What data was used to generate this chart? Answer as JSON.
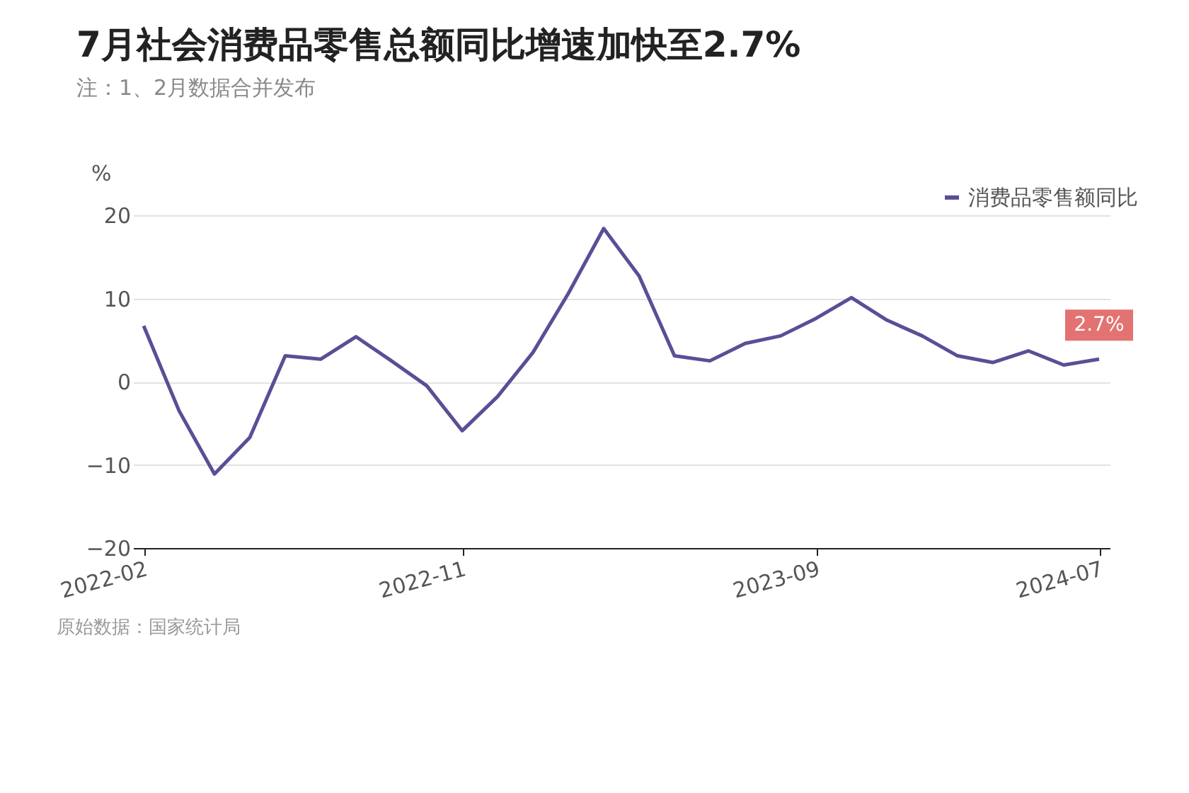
{
  "chart_data": {
    "type": "line",
    "title": "7月社会消费品零售总额同比增速加快至2.7%",
    "subtitle": "注：1、2月数据合并发布",
    "ylabel": "%",
    "categories": [
      "2022-02",
      null,
      null,
      null,
      null,
      null,
      null,
      null,
      null,
      "2022-11",
      null,
      null,
      null,
      null,
      null,
      null,
      null,
      null,
      null,
      "2023-09",
      null,
      null,
      null,
      null,
      null,
      null,
      null,
      "2024-07"
    ],
    "series": [
      {
        "name": "消费品零售额同比",
        "color": "#5b4e96",
        "values": [
          6.7,
          -3.5,
          -11.1,
          -6.7,
          3.1,
          2.7,
          5.4,
          2.5,
          -0.5,
          -5.9,
          -1.8,
          3.5,
          10.6,
          18.4,
          12.7,
          3.1,
          2.5,
          4.6,
          5.5,
          7.6,
          10.1,
          7.4,
          5.5,
          3.1,
          2.3,
          3.7,
          2.0,
          2.7
        ]
      }
    ],
    "ylim": [
      -20,
      20
    ],
    "yticks": [
      -20,
      -10,
      0,
      10,
      20
    ],
    "grid": "y",
    "legend": "top right",
    "marker": "none",
    "line_style": "solid",
    "annotations": [
      {
        "text": "2.7%",
        "x": "2024-07",
        "y": 2.7
      },
      "原始数据：国家统计局"
    ]
  }
}
